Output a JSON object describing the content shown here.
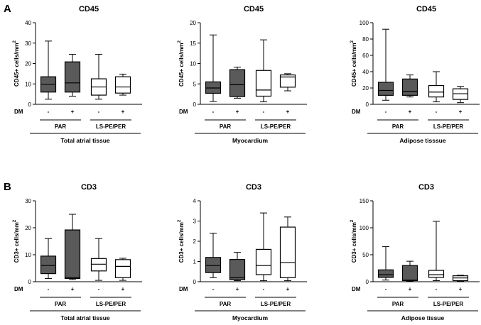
{
  "panels": [
    {
      "label": "A",
      "unit": "cells/mm",
      "superscript": "2"
    },
    {
      "label": "B",
      "unit": "cells/mm",
      "superscript": "2"
    }
  ],
  "chart_data": [
    {
      "type": "box",
      "panel": "A",
      "title": "CD45",
      "ylabel": "CD45+",
      "ylim": [
        0,
        40
      ],
      "yticks": [
        0,
        10,
        20,
        30,
        40
      ],
      "row_label": "DM",
      "dm_labels": [
        "-",
        "+",
        "-",
        "+"
      ],
      "groups": [
        "PAR",
        "LS-PE/PER"
      ],
      "xlabel": "Total atrial tissue",
      "series": [
        {
          "name": "PAR DM-",
          "fill": "#5a5a5a",
          "min": 2.5,
          "q1": 6,
          "median": 9.8,
          "q3": 13.5,
          "max": 31
        },
        {
          "name": "PAR DM+",
          "fill": "#5a5a5a",
          "min": 4,
          "q1": 6,
          "median": 10.5,
          "q3": 20.8,
          "max": 24.5
        },
        {
          "name": "LS-PE/PER DM-",
          "fill": "#ffffff",
          "min": 2.5,
          "q1": 4.5,
          "median": 8.5,
          "q3": 12.5,
          "max": 24.5
        },
        {
          "name": "LS-PE/PER DM+",
          "fill": "#ffffff",
          "min": 4.5,
          "q1": 5.5,
          "median": 8.5,
          "q3": 13.5,
          "max": 14.8
        }
      ]
    },
    {
      "type": "box",
      "panel": "A",
      "title": "CD45",
      "ylabel": "CD45+",
      "ylim": [
        0,
        20
      ],
      "yticks": [
        0,
        5,
        10,
        15,
        20
      ],
      "row_label": "DM",
      "dm_labels": [
        "-",
        "+",
        "-",
        "+"
      ],
      "groups": [
        "PAR",
        "LS-PE/PER"
      ],
      "xlabel": "Myocardium",
      "series": [
        {
          "name": "PAR DM-",
          "fill": "#5a5a5a",
          "min": 0.7,
          "q1": 2.7,
          "median": 4,
          "q3": 5.5,
          "max": 17
        },
        {
          "name": "PAR DM+",
          "fill": "#5a5a5a",
          "min": 1.5,
          "q1": 1.9,
          "median": 4.8,
          "q3": 8.5,
          "max": 9.1
        },
        {
          "name": "LS-PE/PER DM-",
          "fill": "#ffffff",
          "min": 0.6,
          "q1": 2,
          "median": 3.5,
          "q3": 8.3,
          "max": 15.8
        },
        {
          "name": "LS-PE/PER DM+",
          "fill": "#ffffff",
          "min": 3.3,
          "q1": 4.2,
          "median": 6.7,
          "q3": 7.2,
          "max": 7.5
        }
      ]
    },
    {
      "type": "box",
      "panel": "A",
      "title": "CD45",
      "ylabel": "CD45+",
      "ylim": [
        0,
        100
      ],
      "yticks": [
        0,
        20,
        40,
        60,
        80,
        100
      ],
      "row_label": "DM",
      "dm_labels": [
        "-",
        "+",
        "-",
        "+"
      ],
      "groups": [
        "PAR",
        "LS-PE/PER"
      ],
      "xlabel": "Adipose tisssue",
      "series": [
        {
          "name": "PAR DM-",
          "fill": "#5a5a5a",
          "min": 5,
          "q1": 11,
          "median": 17,
          "q3": 27,
          "max": 92
        },
        {
          "name": "PAR DM+",
          "fill": "#5a5a5a",
          "min": 9,
          "q1": 11,
          "median": 16,
          "q3": 31,
          "max": 36
        },
        {
          "name": "LS-PE/PER DM-",
          "fill": "#ffffff",
          "min": 3,
          "q1": 9,
          "median": 15,
          "q3": 23,
          "max": 40
        },
        {
          "name": "LS-PE/PER DM+",
          "fill": "#ffffff",
          "min": 2,
          "q1": 6,
          "median": 13,
          "q3": 19,
          "max": 22
        }
      ]
    },
    {
      "type": "box",
      "panel": "B",
      "title": "CD3",
      "ylabel": "CD3+",
      "ylim": [
        0,
        30
      ],
      "yticks": [
        0,
        10,
        20,
        30
      ],
      "row_label": "DM",
      "dm_labels": [
        "-",
        "+",
        "-",
        "+"
      ],
      "groups": [
        "PAR",
        "LS-PE/PER"
      ],
      "xlabel": "Total atrial tissue",
      "series": [
        {
          "name": "PAR DM-",
          "fill": "#5a5a5a",
          "min": 1.2,
          "q1": 3,
          "median": 6,
          "q3": 9.5,
          "max": 16
        },
        {
          "name": "PAR DM+",
          "fill": "#5a5a5a",
          "min": 0.8,
          "q1": 1.2,
          "median": 1.5,
          "q3": 19.2,
          "max": 25
        },
        {
          "name": "LS-PE/PER DM-",
          "fill": "#ffffff",
          "min": 0.5,
          "q1": 4,
          "median": 6.5,
          "q3": 8.6,
          "max": 16
        },
        {
          "name": "LS-PE/PER DM+",
          "fill": "#ffffff",
          "min": 0.5,
          "q1": 1.5,
          "median": 5.7,
          "q3": 8.2,
          "max": 8.7
        }
      ]
    },
    {
      "type": "box",
      "panel": "B",
      "title": "CD3",
      "ylabel": "CD3+",
      "ylim": [
        0,
        4
      ],
      "yticks": [
        0,
        1,
        2,
        3,
        4
      ],
      "row_label": "DM",
      "dm_labels": [
        "-",
        "+",
        "-",
        "+"
      ],
      "groups": [
        "PAR",
        "LS-PE/PER"
      ],
      "xlabel": "Myocardium",
      "series": [
        {
          "name": "PAR DM-",
          "fill": "#5a5a5a",
          "min": 0.2,
          "q1": 0.45,
          "median": 0.8,
          "q3": 1.2,
          "max": 2.4
        },
        {
          "name": "PAR DM+",
          "fill": "#5a5a5a",
          "min": 0.05,
          "q1": 0.1,
          "median": 0.2,
          "q3": 1.1,
          "max": 1.45
        },
        {
          "name": "LS-PE/PER DM-",
          "fill": "#ffffff",
          "min": 0.05,
          "q1": 0.35,
          "median": 0.8,
          "q3": 1.6,
          "max": 3.4
        },
        {
          "name": "LS-PE/PER DM+",
          "fill": "#ffffff",
          "min": 0.05,
          "q1": 0.2,
          "median": 0.95,
          "q3": 2.7,
          "max": 3.2
        }
      ]
    },
    {
      "type": "box",
      "panel": "B",
      "title": "CD3",
      "ylabel": "CD3+",
      "ylim": [
        0,
        150
      ],
      "yticks": [
        0,
        50,
        100,
        150
      ],
      "row_label": "DM",
      "dm_labels": [
        "-",
        "+",
        "-",
        "+"
      ],
      "groups": [
        "PAR",
        "LS-PE/PER"
      ],
      "xlabel": "Adipose tissue",
      "series": [
        {
          "name": "PAR DM-",
          "fill": "#5a5a5a",
          "min": 3,
          "q1": 8,
          "median": 13,
          "q3": 22,
          "max": 65
        },
        {
          "name": "PAR DM+",
          "fill": "#5a5a5a",
          "min": 1,
          "q1": 2,
          "median": 3,
          "q3": 30,
          "max": 38
        },
        {
          "name": "LS-PE/PER DM-",
          "fill": "#ffffff",
          "min": 2,
          "q1": 8,
          "median": 13,
          "q3": 21,
          "max": 112
        },
        {
          "name": "LS-PE/PER DM+",
          "fill": "#ffffff",
          "min": 1,
          "q1": 2,
          "median": 7,
          "q3": 11,
          "max": 12
        }
      ]
    }
  ]
}
